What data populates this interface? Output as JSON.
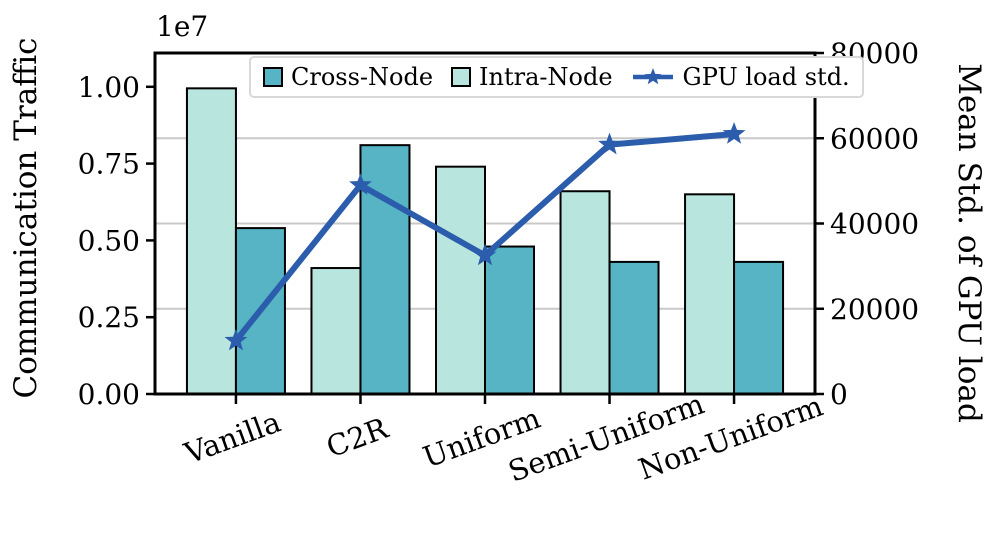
{
  "chart_data": {
    "type": "bar+line",
    "categories": [
      "Vanilla",
      "C2R",
      "Uniform",
      "Semi-Uniform",
      "Non-Uniform"
    ],
    "bar_series": [
      {
        "name": "Cross-Node",
        "axis": "left",
        "color": "#57b4c5",
        "values": [
          5400000,
          8100000,
          4800000,
          4300000,
          4300000
        ]
      },
      {
        "name": "Intra-Node",
        "axis": "left",
        "color": "#b8e5dd",
        "values": [
          9950000,
          4100000,
          7400000,
          6600000,
          6500000
        ]
      }
    ],
    "line_series": {
      "name": "GPU load std.",
      "axis": "right",
      "color": "#2b5dac",
      "marker": "star",
      "values": [
        12500,
        49000,
        32500,
        58500,
        61000
      ]
    },
    "left_axis": {
      "label": "Communication Traffic",
      "offset_text": "1e7",
      "tick_labels": [
        "0.00",
        "0.25",
        "0.50",
        "0.75",
        "1.00"
      ],
      "tick_values": [
        0,
        2500000,
        5000000,
        7500000,
        10000000
      ],
      "lim": [
        0,
        11100000
      ]
    },
    "right_axis": {
      "label": "Mean Std. of GPU load",
      "tick_labels": [
        "0",
        "20000",
        "40000",
        "60000",
        "80000"
      ],
      "tick_values": [
        0,
        20000,
        40000,
        60000,
        80000
      ],
      "lim": [
        0,
        80000
      ]
    },
    "grid": {
      "axis": "right-y",
      "color": "#c9c9c9",
      "tick_values": [
        20000,
        40000,
        60000
      ]
    },
    "legend": {
      "position": "upper-center-inside",
      "border_color": "#d8d8d8",
      "background": "#ffffff"
    },
    "styles": {
      "bar_edge": "#000000",
      "spine": "#000000",
      "x_label_rotation_deg": -20
    }
  }
}
